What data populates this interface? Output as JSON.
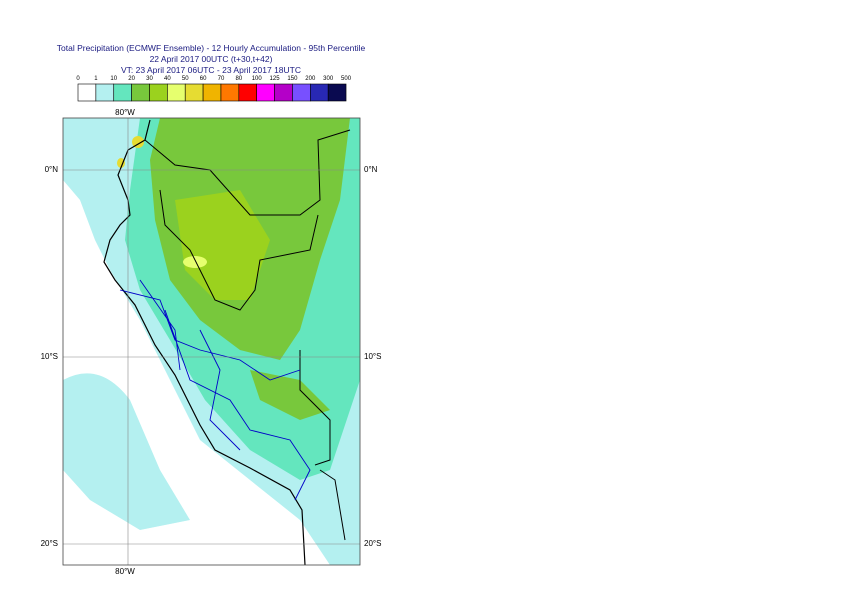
{
  "header": {
    "title": "Total Precipitation (ECMWF Ensemble) - 12 Hourly Accumulation - 95th Percentile",
    "base_time": "22 April 2017 00UTC (t+30,t+42)",
    "valid_time": "VT: 23 April 2017 06UTC - 23 April 2017 18UTC"
  },
  "legend": {
    "labels": [
      "0",
      "1",
      "10",
      "20",
      "30",
      "40",
      "50",
      "60",
      "70",
      "80",
      "100",
      "125",
      "150",
      "200",
      "300",
      "500"
    ],
    "colors": [
      "#ffffff",
      "#b4f0f0",
      "#64e6be",
      "#78c83c",
      "#9bd21e",
      "#e6ff6e",
      "#e6dc32",
      "#f0b400",
      "#ff7800",
      "#ff0000",
      "#ff00ff",
      "#b400c8",
      "#7850ff",
      "#2828b4",
      "#0a0a50"
    ]
  },
  "map": {
    "lon_label": "80°W",
    "lat_labels": [
      "0°N",
      "10°S",
      "20°S"
    ]
  }
}
